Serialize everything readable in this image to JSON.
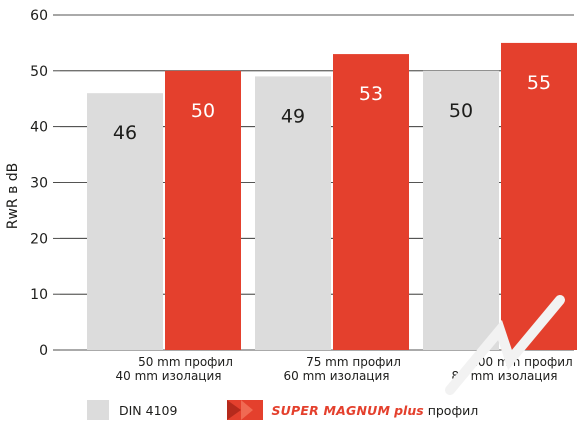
{
  "chart_data": {
    "type": "bar",
    "ylabel": "RwR в dB",
    "ylim": [
      0,
      60
    ],
    "yticks": [
      0,
      10,
      20,
      30,
      40,
      50,
      60
    ],
    "grid": true,
    "categories": [
      [
        "50 mm профил",
        "40 mm изолация"
      ],
      [
        "75 mm профил",
        "60 mm изолация"
      ],
      [
        "100 mm профил",
        "80 mm изолация"
      ]
    ],
    "series": [
      {
        "name": "DIN 4109",
        "values": [
          46,
          49,
          50
        ],
        "color": "#dcdcdc",
        "label_color": "#1d1d1b"
      },
      {
        "name": "SUPER MAGNUM plus профил",
        "values": [
          50,
          53,
          55
        ],
        "color": "#e4402d",
        "label_color": "#ffffff"
      }
    ],
    "legend_position": "bottom"
  },
  "legend": {
    "din_label": "DIN  4109",
    "brand_label": "SUPER MAGNUM",
    "brand_plus": "plus",
    "brand_suffix": "профил"
  }
}
